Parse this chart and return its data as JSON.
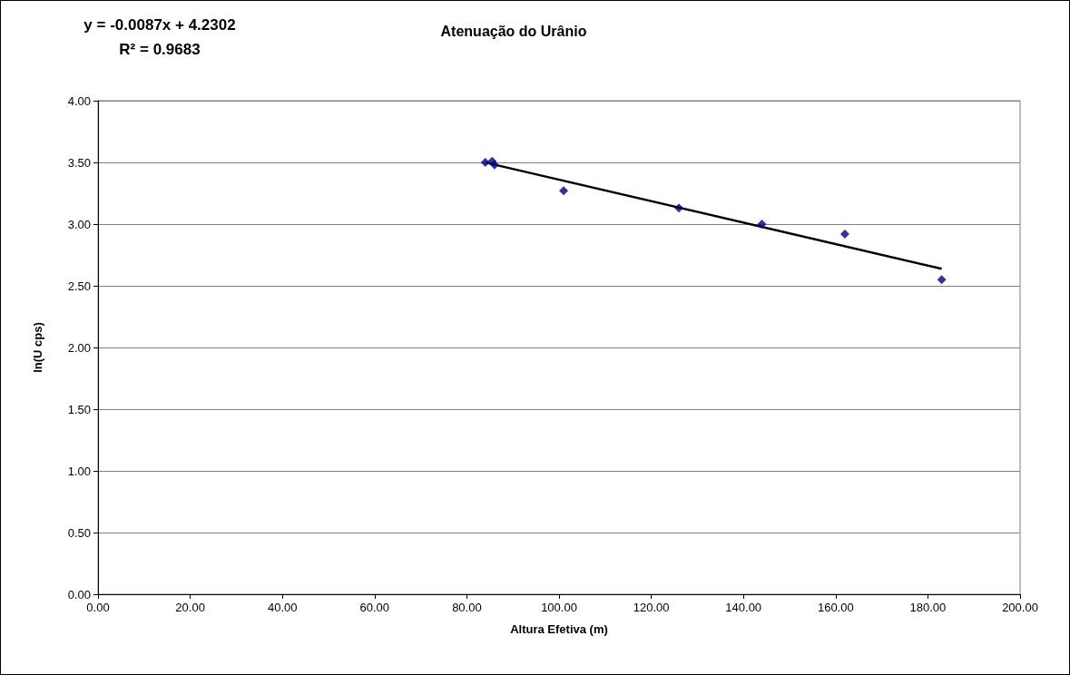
{
  "chart_data": {
    "type": "scatter",
    "title": "Atenuação do Urânio",
    "xlabel": "Altura Efetiva (m)",
    "ylabel": "ln(U cps)",
    "annotations": [
      "y = -0.0087x + 4.2302",
      "R² = 0.9683"
    ],
    "series": [
      {
        "color": "#000080",
        "marker": "diamond",
        "x": [
          84,
          85.5,
          86,
          101,
          126,
          144,
          162,
          183
        ],
        "values": [
          3.5,
          3.51,
          3.48,
          3.27,
          3.13,
          3.0,
          2.92,
          2.55
        ]
      },
      {
        "type": "line",
        "color": "#000000",
        "marker": "none",
        "x": [
          84,
          183
        ],
        "values": [
          3.499,
          2.638
        ]
      }
    ],
    "xlim": [
      0,
      200
    ],
    "xticks": [
      {
        "value": 0,
        "label": "0.00"
      },
      {
        "value": 20,
        "label": "20.00"
      },
      {
        "value": 40,
        "label": "40.00"
      },
      {
        "value": 60,
        "label": "60.00"
      },
      {
        "value": 80,
        "label": "80.00"
      },
      {
        "value": 100,
        "label": "100.00"
      },
      {
        "value": 120,
        "label": "120.00"
      },
      {
        "value": 140,
        "label": "140.00"
      },
      {
        "value": 160,
        "label": "160.00"
      },
      {
        "value": 180,
        "label": "180.00"
      },
      {
        "value": 200,
        "label": "200.00"
      }
    ],
    "ylim": [
      0,
      4
    ],
    "yticks": [
      {
        "value": 0,
        "label": "0.00"
      },
      {
        "value": 0.5,
        "label": "0.50"
      },
      {
        "value": 1,
        "label": "1.00"
      },
      {
        "value": 1.5,
        "label": "1.50"
      },
      {
        "value": 2,
        "label": "2.00"
      },
      {
        "value": 2.5,
        "label": "2.50"
      },
      {
        "value": 3,
        "label": "3.00"
      },
      {
        "value": 3.5,
        "label": "3.50"
      },
      {
        "value": 4,
        "label": "4.00"
      }
    ],
    "grid": "y"
  }
}
